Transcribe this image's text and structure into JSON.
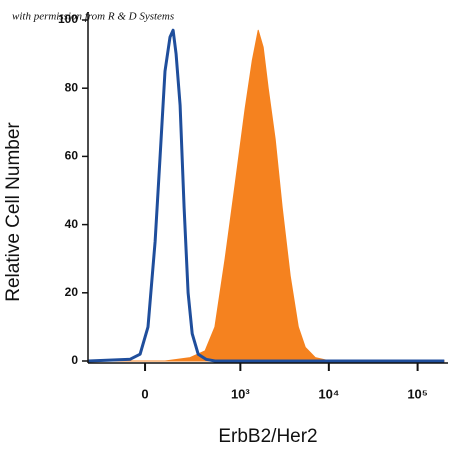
{
  "chart_data": {
    "type": "histogram-overlay",
    "watermark": "with permission from R & D Systems",
    "x_label": "ErbB2/Her2",
    "y_label": "Relative Cell Number",
    "xscale": "biexponential",
    "xlim": [
      -354,
      220000
    ],
    "ylim": [
      0,
      100
    ],
    "xticks": [
      0,
      {
        "value": 1000,
        "label": "10³"
      },
      {
        "value": 10000,
        "label": "10⁴"
      },
      {
        "value": 100000,
        "label": "10⁵"
      }
    ],
    "yticks": [
      0,
      20,
      40,
      60,
      80,
      100
    ],
    "series": [
      {
        "color": "#f5821f",
        "fill": true,
        "x": [
          -350,
          92,
          247,
          386,
          507,
          668,
          872,
          1134,
          1363,
          1596,
          1819,
          2072,
          2487,
          2983,
          3672,
          4521,
          5423,
          7038,
          10387,
          200000
        ],
        "values": [
          0,
          0,
          1,
          3,
          10,
          30,
          52,
          74,
          88,
          97,
          92,
          80,
          65,
          45,
          25,
          10,
          4,
          1,
          0,
          0
        ]
      },
      {
        "color": "#1f4e9c",
        "fill": false,
        "x": [
          -350,
          -68,
          -22,
          13,
          45,
          68,
          92,
          118,
          135,
          152,
          177,
          203,
          232,
          264,
          316,
          396,
          507,
          200000
        ],
        "values": [
          0,
          0.5,
          2,
          10,
          35,
          60,
          85,
          95,
          97,
          90,
          75,
          45,
          20,
          8,
          2,
          0.5,
          0,
          0
        ]
      }
    ]
  }
}
